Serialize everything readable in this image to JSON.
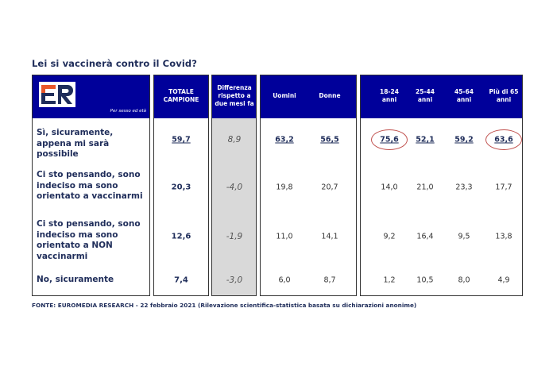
{
  "title": "Lei si vaccinerà contro il Covid?",
  "logo_text": "ER",
  "subtitle": "Per sesso ed età",
  "chart_data": {
    "type": "table",
    "columns": [
      "TOTALE CAMPIONE",
      "Differenza rispetto a due mesi fa",
      "Uomini",
      "Donne",
      "18-24 anni",
      "25-44 anni",
      "45-64 anni",
      "Più di 65 anni"
    ],
    "rows": [
      {
        "label": "Sì, sicuramente, appena mi sarà possibile",
        "values": [
          "59,7",
          "8,9",
          "63,2",
          "56,5",
          "75,6",
          "52,1",
          "59,2",
          "63,6"
        ]
      },
      {
        "label": "Ci sto pensando, sono indeciso ma sono orientato a vaccinarmi",
        "values": [
          "20,3",
          "-4,0",
          "19,8",
          "20,7",
          "14,0",
          "21,0",
          "23,3",
          "17,7"
        ]
      },
      {
        "label": "Ci sto pensando, sono indeciso ma sono orientato a NON vaccinarmi",
        "values": [
          "12,6",
          "-1,9",
          "11,0",
          "14,1",
          "9,2",
          "16,4",
          "9,5",
          "13,8"
        ]
      },
      {
        "label": "No, sicuramente",
        "values": [
          "7,4",
          "-3,0",
          "6,0",
          "8,7",
          "1,2",
          "10,5",
          "8,0",
          "4,9"
        ]
      }
    ],
    "highlighted": [
      "18-24 anni / Sì, sicuramente",
      "Più di 65 anni / Sì, sicuramente"
    ],
    "colors": {
      "header": "#00009a",
      "highlight": "#c0504d",
      "diff_column": "#d9d9d9"
    }
  },
  "footer": "FONTE: EUROMEDIA RESEARCH - 22 febbraio 2021 (Rilevazione scientifica-statistica basata su dichiarazioni anonime)"
}
